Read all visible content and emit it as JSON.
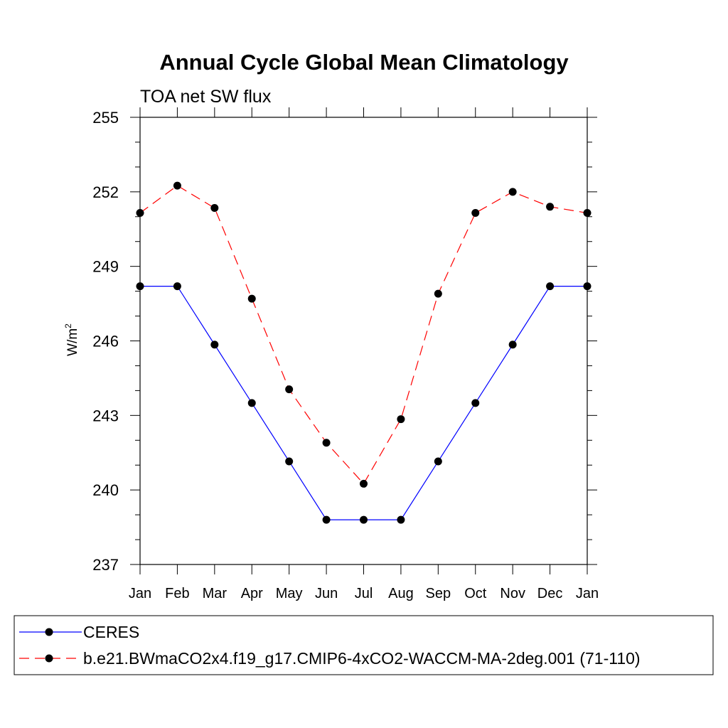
{
  "chart_data": {
    "type": "line",
    "title": "Annual Cycle Global Mean Climatology",
    "subtitle": "TOA net SW flux",
    "ylabel": "W/m",
    "ylabel_superscript": "2",
    "xlabel": "",
    "categories": [
      "Jan",
      "Feb",
      "Mar",
      "Apr",
      "May",
      "Jun",
      "Jul",
      "Aug",
      "Sep",
      "Oct",
      "Nov",
      "Dec",
      "Jan"
    ],
    "ylim": [
      237,
      255
    ],
    "yticks": [
      "237",
      "240",
      "243",
      "246",
      "249",
      "252",
      "255"
    ],
    "grid": false,
    "legend_position": "bottom",
    "series": [
      {
        "name": "CERES",
        "color": "#0000ff",
        "line_style": "solid",
        "marker": "circle",
        "values": [
          248.2,
          248.2,
          245.85,
          243.5,
          241.15,
          238.8,
          238.8,
          238.8,
          241.15,
          243.5,
          245.85,
          248.2,
          248.2
        ]
      },
      {
        "name": "b.e21.BWmaCO2x4.f19_g17.CMIP6-4xCO2-WACCM-MA-2deg.001 (71-110)",
        "color": "#ff0000",
        "line_style": "dashed",
        "marker": "circle",
        "values": [
          251.15,
          252.25,
          251.35,
          247.7,
          244.05,
          241.9,
          240.25,
          242.85,
          247.9,
          251.15,
          252.0,
          251.4,
          251.15
        ]
      }
    ]
  }
}
